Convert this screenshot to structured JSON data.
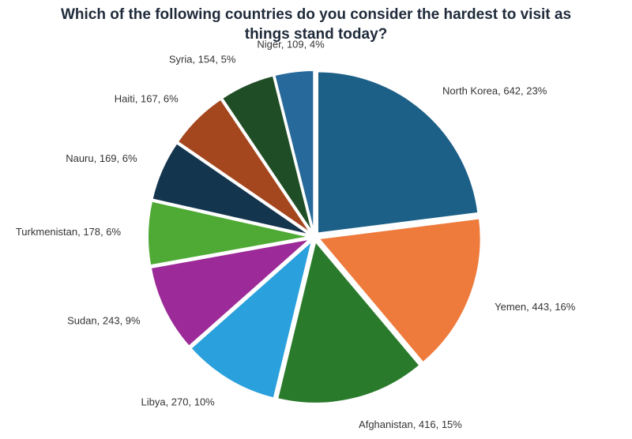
{
  "chart_data": {
    "type": "pie",
    "title": "Which of the following countries do you consider the hardest to visit as things stand today?",
    "values": [
      642,
      443,
      416,
      270,
      243,
      178,
      169,
      167,
      154,
      109
    ],
    "value_labels": [
      "North Korea, 642, 23%",
      "Yemen, 443, 16%",
      "Afghanistan, 416, 15%",
      "Libya, 270, 10%",
      "Sudan, 243, 9%",
      "Turkmenistan, 178, 6%",
      "Nauru, 169, 6%",
      "Haiti, 167, 6%",
      "Syria, 154, 5%",
      "Niger, 109, 4%"
    ],
    "colors": [
      "#1c5f87",
      "#ee7a3c",
      "#2a7a2c",
      "#2aa0dc",
      "#9c2a98",
      "#4eaa34",
      "#14354e",
      "#a4461e",
      "#1f4d25",
      "#27699a"
    ]
  }
}
